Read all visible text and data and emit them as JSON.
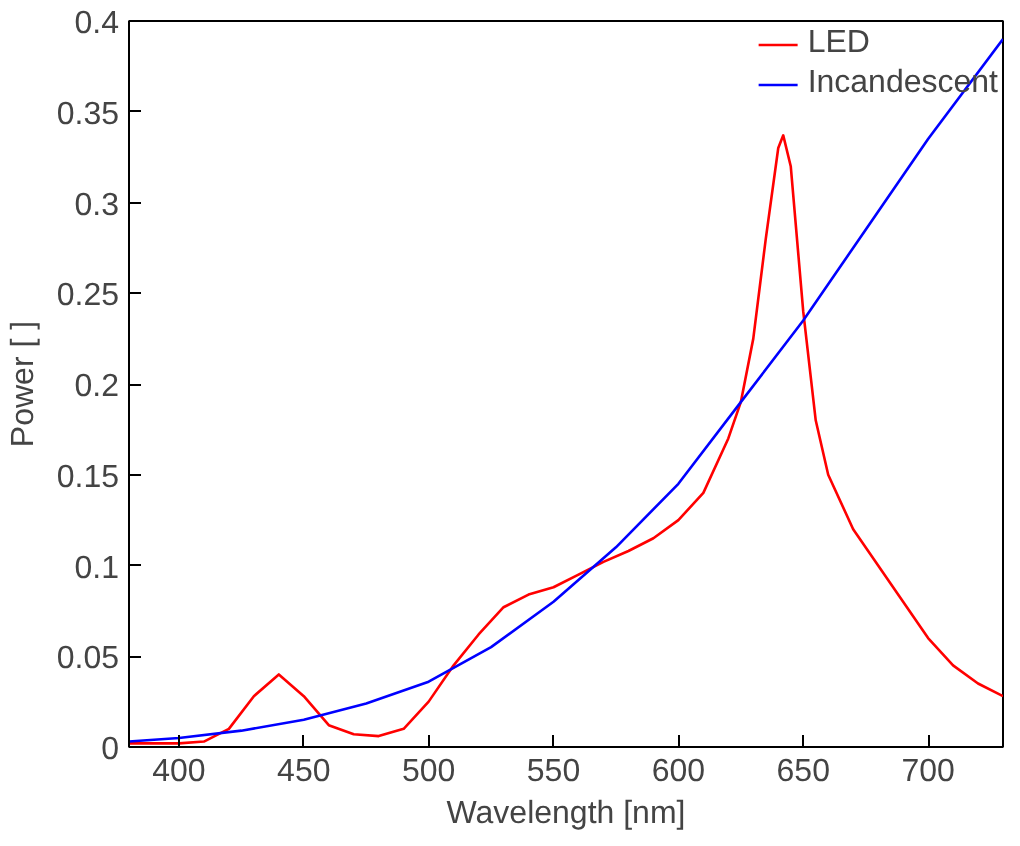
{
  "chart_data": {
    "type": "line",
    "xlabel": "Wavelength [nm]",
    "ylabel": "Power [ ]",
    "xlim": [
      380,
      730
    ],
    "ylim": [
      0,
      0.4
    ],
    "xticks": [
      400,
      450,
      500,
      550,
      600,
      650,
      700
    ],
    "yticks": [
      0,
      0.05,
      0.1,
      0.15,
      0.2,
      0.25,
      0.3,
      0.35,
      0.4
    ],
    "grid": false,
    "legend": "top right",
    "marker": "none",
    "line_style": "solid",
    "series": [
      {
        "name": "LED",
        "color": "#ff0000",
        "x": [
          380,
          400,
          410,
          420,
          430,
          440,
          450,
          460,
          470,
          480,
          490,
          500,
          510,
          520,
          530,
          540,
          550,
          560,
          570,
          580,
          590,
          600,
          610,
          620,
          625,
          630,
          635,
          640,
          642,
          645,
          650,
          655,
          660,
          670,
          680,
          690,
          700,
          710,
          720,
          730
        ],
        "values": [
          0.002,
          0.002,
          0.003,
          0.01,
          0.028,
          0.04,
          0.028,
          0.012,
          0.007,
          0.006,
          0.01,
          0.025,
          0.045,
          0.062,
          0.077,
          0.084,
          0.088,
          0.095,
          0.102,
          0.108,
          0.115,
          0.125,
          0.14,
          0.17,
          0.19,
          0.225,
          0.28,
          0.33,
          0.337,
          0.32,
          0.24,
          0.18,
          0.15,
          0.12,
          0.1,
          0.08,
          0.06,
          0.045,
          0.035,
          0.028
        ]
      },
      {
        "name": "Incandescent",
        "color": "#0000ff",
        "x": [
          380,
          400,
          425,
          450,
          475,
          500,
          525,
          550,
          575,
          600,
          625,
          650,
          675,
          700,
          730
        ],
        "values": [
          0.003,
          0.005,
          0.009,
          0.015,
          0.024,
          0.036,
          0.055,
          0.08,
          0.11,
          0.145,
          0.19,
          0.235,
          0.285,
          0.335,
          0.39
        ]
      }
    ]
  }
}
